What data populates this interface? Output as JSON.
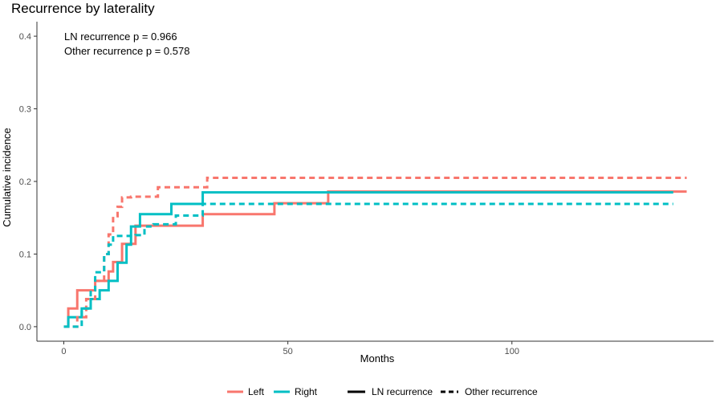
{
  "chart_data": {
    "type": "line",
    "title": "Recurrence by laterality",
    "xlabel": "Months",
    "ylabel": "Cumulative incidence",
    "xlim": [
      -6,
      145
    ],
    "ylim": [
      -0.02,
      0.42
    ],
    "xticks": [
      0,
      50,
      100
    ],
    "yticks": [
      0.0,
      0.1,
      0.2,
      0.3,
      0.4
    ],
    "xtick_labels": [
      "0",
      "50",
      "100"
    ],
    "ytick_labels": [
      "0.0",
      "0.1",
      "0.2",
      "0.3",
      "0.4"
    ],
    "grid": false,
    "annotations": [
      "LN recurrence p = 0.966",
      "Other recurrence p = 0.578"
    ],
    "legend": {
      "placement": "bottom",
      "color_entries": [
        {
          "label": "Left",
          "color": "#F8766D"
        },
        {
          "label": "Right",
          "color": "#00BFC4"
        }
      ],
      "linetype_entries": [
        {
          "label": "LN recurrence",
          "dash": "solid"
        },
        {
          "label": "Other recurrence",
          "dash": "dashed"
        }
      ]
    },
    "series": [
      {
        "name": "Left - LN recurrence",
        "color": "#F8766D",
        "dash": "solid",
        "x": [
          0,
          1,
          3,
          7,
          10,
          11,
          13,
          16,
          31,
          47,
          59,
          136,
          139
        ],
        "y": [
          0.0,
          0.025,
          0.05,
          0.063,
          0.076,
          0.089,
          0.114,
          0.139,
          0.155,
          0.17,
          0.186,
          0.186,
          0.186
        ]
      },
      {
        "name": "Right - LN recurrence",
        "color": "#00BFC4",
        "dash": "solid",
        "x": [
          0,
          1,
          4,
          6,
          8,
          10,
          12,
          14,
          15,
          17,
          24,
          31,
          59,
          136
        ],
        "y": [
          0.0,
          0.013,
          0.025,
          0.038,
          0.05,
          0.063,
          0.088,
          0.113,
          0.138,
          0.155,
          0.169,
          0.185,
          0.185,
          0.185
        ]
      },
      {
        "name": "Left - Other recurrence",
        "color": "#F8766D",
        "dash": "dashed",
        "x": [
          2,
          3,
          5,
          7,
          9,
          10,
          11,
          12,
          13,
          15,
          21,
          32,
          139
        ],
        "y": [
          0.0,
          0.013,
          0.038,
          0.063,
          0.1,
          0.127,
          0.152,
          0.165,
          0.178,
          0.179,
          0.192,
          0.205,
          0.205
        ]
      },
      {
        "name": "Right - Other recurrence",
        "color": "#00BFC4",
        "dash": "dashed",
        "x": [
          2,
          4,
          6,
          7,
          9,
          10,
          11,
          13,
          16,
          18,
          20,
          25,
          31,
          136
        ],
        "y": [
          0.0,
          0.025,
          0.05,
          0.075,
          0.1,
          0.113,
          0.125,
          0.125,
          0.126,
          0.138,
          0.141,
          0.153,
          0.169,
          0.169
        ]
      }
    ]
  }
}
